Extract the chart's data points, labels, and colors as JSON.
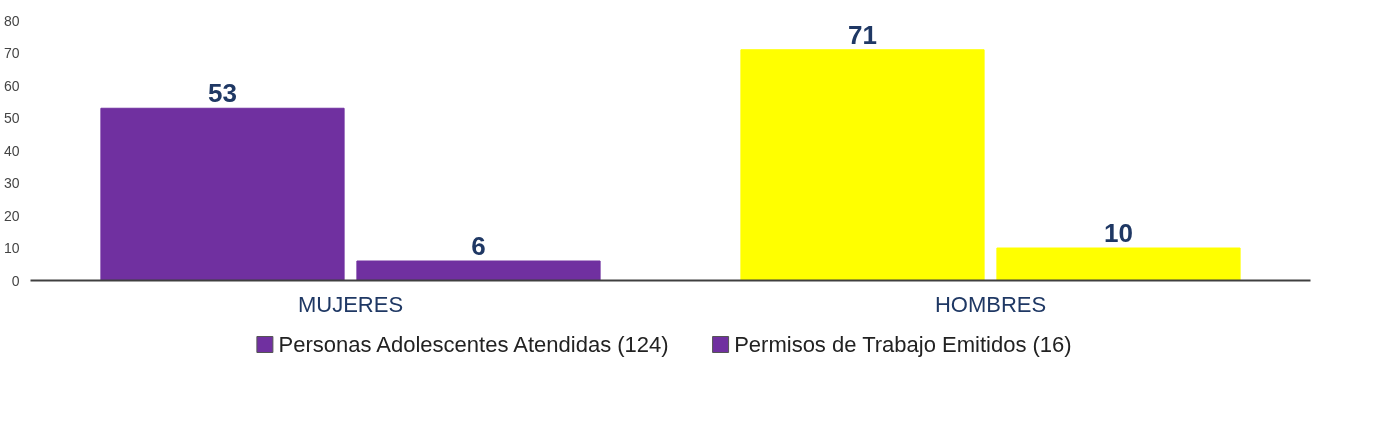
{
  "chart_data": {
    "type": "bar",
    "categories": [
      "MUJERES",
      "HOMBRES"
    ],
    "series": [
      {
        "name": "Personas Adolescentes Atendidas (124)",
        "color": "#7030a0",
        "colors": [
          "#7030a0",
          "#ffff00"
        ],
        "values": [
          53,
          71
        ]
      },
      {
        "name": "Permisos de Trabajo Emitidos (16)",
        "color": "#7030a0",
        "colors": [
          "#7030a0",
          "#ffff00"
        ],
        "values": [
          6,
          10
        ]
      }
    ],
    "ylim": [
      0,
      80
    ],
    "yticks": [
      0,
      10,
      20,
      30,
      40,
      50,
      60,
      70,
      80
    ],
    "grid": false,
    "legend": "bottom",
    "data_labels": true
  }
}
